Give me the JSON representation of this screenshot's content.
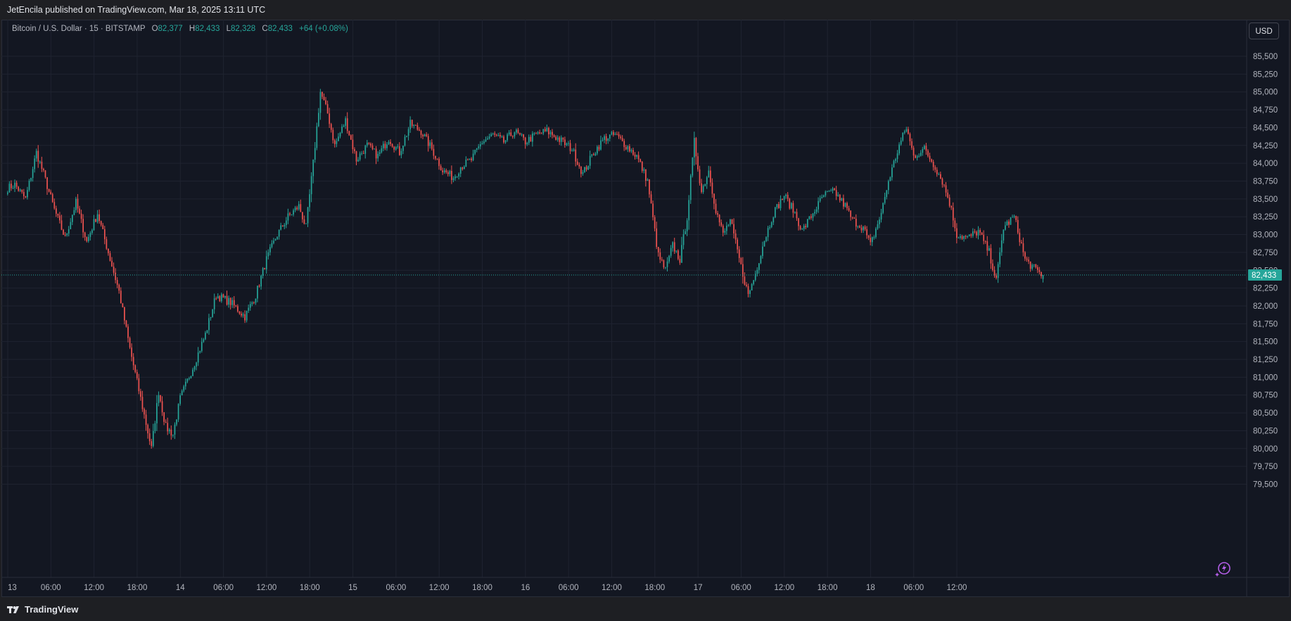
{
  "header": {
    "published": "JetEncila published on TradingView.com, Mar 18, 2025 13:11 UTC"
  },
  "legend": {
    "symbol": "Bitcoin / U.S. Dollar · 15 · BITSTAMP",
    "open_label": "O",
    "open": "82,377",
    "high_label": "H",
    "high": "82,433",
    "low_label": "L",
    "low": "82,328",
    "close_label": "C",
    "close": "82,433",
    "change": "+64 (+0.08%)"
  },
  "currency_button": "USD",
  "footer": {
    "brand": "TradingView"
  },
  "icons": {
    "brand_logo": "tradingview-logo-icon",
    "flash": "flash-icon"
  },
  "colors": {
    "up": "#26a69a",
    "down": "#ef5350",
    "background": "#131722",
    "grid": "#1f2330",
    "price_line": "#26a69a"
  },
  "chart_data": {
    "type": "candlestick",
    "symbol": "BTCUSD",
    "interval": "15",
    "ylim": [
      79400,
      85650
    ],
    "y_ticks": [
      "79,500",
      "79,750",
      "80,000",
      "80,250",
      "80,500",
      "80,750",
      "81,000",
      "81,250",
      "81,500",
      "81,750",
      "82,000",
      "82,250",
      "82,500",
      "82,750",
      "83,000",
      "83,250",
      "83,500",
      "83,750",
      "84,000",
      "84,250",
      "84,500",
      "84,750",
      "85,000",
      "85,250",
      "85,500"
    ],
    "x_ticks": [
      "13",
      "06:00",
      "12:00",
      "18:00",
      "14",
      "06:00",
      "12:00",
      "18:00",
      "15",
      "06:00",
      "12:00",
      "18:00",
      "16",
      "06:00",
      "12:00",
      "18:00",
      "17",
      "06:00",
      "12:00",
      "18:00",
      "18",
      "06:00",
      "12:00"
    ],
    "last_price": "82,433",
    "anchors": [
      [
        0,
        83650
      ],
      [
        4,
        83700
      ],
      [
        10,
        83500
      ],
      [
        16,
        84150
      ],
      [
        20,
        83850
      ],
      [
        26,
        83350
      ],
      [
        32,
        82950
      ],
      [
        38,
        83450
      ],
      [
        44,
        82900
      ],
      [
        50,
        83300
      ],
      [
        56,
        82750
      ],
      [
        62,
        82200
      ],
      [
        68,
        81400
      ],
      [
        74,
        80700
      ],
      [
        80,
        80000
      ],
      [
        84,
        80800
      ],
      [
        88,
        80300
      ],
      [
        92,
        80200
      ],
      [
        96,
        80700
      ],
      [
        104,
        81200
      ],
      [
        110,
        81600
      ],
      [
        116,
        82150
      ],
      [
        124,
        82050
      ],
      [
        132,
        81850
      ],
      [
        138,
        82150
      ],
      [
        144,
        82650
      ],
      [
        150,
        83000
      ],
      [
        156,
        83250
      ],
      [
        162,
        83400
      ],
      [
        166,
        83100
      ],
      [
        170,
        84000
      ],
      [
        174,
        85000
      ],
      [
        178,
        84700
      ],
      [
        182,
        84250
      ],
      [
        188,
        84600
      ],
      [
        194,
        84050
      ],
      [
        200,
        84250
      ],
      [
        206,
        84100
      ],
      [
        212,
        84350
      ],
      [
        218,
        84150
      ],
      [
        224,
        84550
      ],
      [
        230,
        84450
      ],
      [
        236,
        84200
      ],
      [
        242,
        83900
      ],
      [
        248,
        83800
      ],
      [
        252,
        83950
      ],
      [
        258,
        84050
      ],
      [
        264,
        84300
      ],
      [
        270,
        84400
      ],
      [
        276,
        84300
      ],
      [
        282,
        84450
      ],
      [
        288,
        84300
      ],
      [
        294,
        84400
      ],
      [
        300,
        84450
      ],
      [
        306,
        84350
      ],
      [
        314,
        84200
      ],
      [
        320,
        83850
      ],
      [
        326,
        84150
      ],
      [
        332,
        84350
      ],
      [
        338,
        84400
      ],
      [
        344,
        84250
      ],
      [
        350,
        84100
      ],
      [
        356,
        83750
      ],
      [
        362,
        82700
      ],
      [
        366,
        82500
      ],
      [
        370,
        82850
      ],
      [
        374,
        82650
      ],
      [
        378,
        83250
      ],
      [
        382,
        84300
      ],
      [
        386,
        83600
      ],
      [
        390,
        83900
      ],
      [
        394,
        83350
      ],
      [
        398,
        83000
      ],
      [
        402,
        83200
      ],
      [
        408,
        82550
      ],
      [
        412,
        82150
      ],
      [
        416,
        82450
      ],
      [
        420,
        82850
      ],
      [
        426,
        83300
      ],
      [
        432,
        83550
      ],
      [
        438,
        83300
      ],
      [
        442,
        83050
      ],
      [
        448,
        83300
      ],
      [
        454,
        83550
      ],
      [
        460,
        83600
      ],
      [
        466,
        83400
      ],
      [
        470,
        83200
      ],
      [
        476,
        83100
      ],
      [
        480,
        82850
      ],
      [
        486,
        83300
      ],
      [
        490,
        83750
      ],
      [
        496,
        84250
      ],
      [
        500,
        84500
      ],
      [
        504,
        84100
      ],
      [
        510,
        84200
      ],
      [
        516,
        83950
      ],
      [
        520,
        83750
      ],
      [
        524,
        83450
      ],
      [
        528,
        83000
      ],
      [
        534,
        82950
      ],
      [
        540,
        83050
      ],
      [
        546,
        82750
      ],
      [
        550,
        82350
      ],
      [
        554,
        83100
      ],
      [
        560,
        83250
      ],
      [
        566,
        82650
      ],
      [
        572,
        82500
      ],
      [
        576,
        82433
      ]
    ]
  }
}
